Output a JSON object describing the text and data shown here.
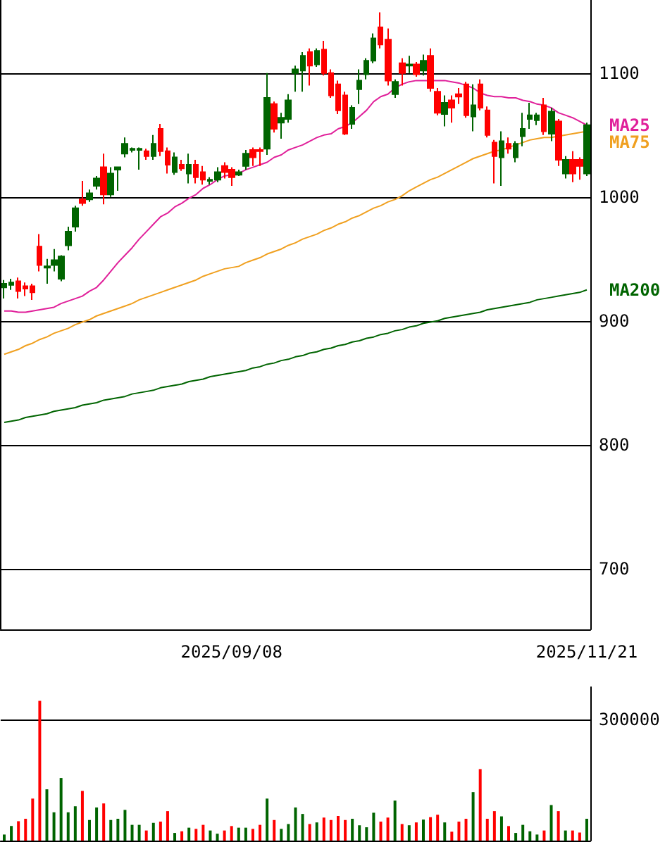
{
  "chart_data": [
    {
      "type": "candlestick",
      "categories": [
        null,
        null,
        null,
        null,
        null,
        null,
        null,
        null,
        null,
        null,
        null,
        null,
        null,
        null,
        null,
        null,
        null,
        null,
        null,
        null,
        null,
        null,
        null,
        null,
        null,
        null,
        null,
        null,
        null,
        null,
        null,
        null,
        "2025/09/08",
        null,
        null,
        null,
        null,
        null,
        null,
        null,
        null,
        null,
        null,
        null,
        null,
        null,
        null,
        null,
        null,
        null,
        null,
        null,
        null,
        null,
        null,
        null,
        null,
        null,
        null,
        null,
        null,
        null,
        null,
        null,
        null,
        null,
        null,
        null,
        null,
        null,
        null,
        null,
        null,
        null,
        null,
        null,
        null,
        null,
        null,
        null,
        null,
        null,
        "2025/11/21"
      ],
      "series": [
        {
          "type": "candlestick",
          "ohlc": [
            [
              927,
              933,
              918,
              930
            ],
            [
              929,
              934,
              925,
              931
            ],
            [
              932,
              935,
              918,
              924
            ],
            [
              928,
              931,
              920,
              926
            ],
            [
              928,
              930,
              917,
              923
            ],
            [
              960,
              970,
              940,
              945
            ],
            [
              943,
              950,
              930,
              944
            ],
            [
              945,
              958,
              940,
              949
            ],
            [
              934,
              953,
              932,
              952
            ],
            [
              961,
              976,
              957,
              972
            ],
            [
              976,
              993,
              972,
              991
            ],
            [
              998,
              1013,
              993,
              995
            ],
            [
              998,
              1006,
              996,
              1003
            ],
            [
              1009,
              1017,
              1006,
              1015
            ],
            [
              1024,
              1035,
              994,
              1002
            ],
            [
              1002,
              1024,
              1000,
              1019
            ],
            [
              1022,
              1024,
              1005,
              1024
            ],
            [
              1035,
              1048,
              1032,
              1043
            ],
            [
              1038,
              1040,
              1036,
              1039
            ],
            [
              1038,
              1040,
              1022,
              1039
            ],
            [
              1037,
              1039,
              1030,
              1033
            ],
            [
              1033,
              1050,
              1030,
              1043
            ],
            [
              1055,
              1059,
              1033,
              1037
            ],
            [
              1037,
              1040,
              1019,
              1026
            ],
            [
              1020,
              1036,
              1018,
              1032
            ],
            [
              1026,
              1030,
              1021,
              1023
            ],
            [
              1019,
              1035,
              1011,
              1026
            ],
            [
              1026,
              1030,
              1011,
              1016
            ],
            [
              1020,
              1025,
              1010,
              1014
            ],
            [
              1013,
              1016,
              1010,
              1014
            ],
            [
              1014,
              1024,
              1012,
              1020
            ],
            [
              1025,
              1028,
              1015,
              1020
            ],
            [
              1022,
              1024,
              1009,
              1016
            ],
            [
              1018,
              1022,
              1017,
              1020
            ],
            [
              1025,
              1038,
              1022,
              1035
            ],
            [
              1038,
              1040,
              1025,
              1032
            ],
            [
              1038,
              1040,
              1025,
              1037
            ],
            [
              1039,
              1100,
              1034,
              1080
            ],
            [
              1075,
              1077,
              1052,
              1055
            ],
            [
              1060,
              1068,
              1047,
              1064
            ],
            [
              1063,
              1083,
              1060,
              1078
            ],
            [
              1100,
              1106,
              1085,
              1103
            ],
            [
              1102,
              1117,
              1085,
              1114
            ],
            [
              1117,
              1120,
              1090,
              1106
            ],
            [
              1107,
              1120,
              1105,
              1118
            ],
            [
              1119,
              1126,
              1098,
              1100
            ],
            [
              1100,
              1103,
              1080,
              1082
            ],
            [
              1091,
              1094,
              1067,
              1070
            ],
            [
              1082,
              1085,
              1050,
              1051
            ],
            [
              1059,
              1074,
              1055,
              1072
            ],
            [
              1087,
              1103,
              1075,
              1094
            ],
            [
              1099,
              1112,
              1095,
              1110
            ],
            [
              1110,
              1132,
              1108,
              1128
            ],
            [
              1137,
              1149,
              1120,
              1123
            ],
            [
              1127,
              1136,
              1090,
              1094
            ],
            [
              1083,
              1095,
              1080,
              1093
            ],
            [
              1108,
              1112,
              1090,
              1100
            ],
            [
              1106,
              1114,
              1100,
              1107
            ],
            [
              1107,
              1109,
              1097,
              1099
            ],
            [
              1102,
              1115,
              1098,
              1110
            ],
            [
              1114,
              1120,
              1085,
              1088
            ],
            [
              1085,
              1088,
              1066,
              1068
            ],
            [
              1067,
              1082,
              1057,
              1076
            ],
            [
              1078,
              1082,
              1060,
              1072
            ],
            [
              1083,
              1088,
              1075,
              1081
            ],
            [
              1091,
              1093,
              1064,
              1066
            ],
            [
              1065,
              1091,
              1053,
              1074
            ],
            [
              1091,
              1095,
              1070,
              1072
            ],
            [
              1070,
              1073,
              1048,
              1050
            ],
            [
              1044,
              1046,
              1011,
              1033
            ],
            [
              1032,
              1053,
              1009,
              1045
            ],
            [
              1043,
              1048,
              1035,
              1039
            ],
            [
              1032,
              1045,
              1028,
              1043
            ],
            [
              1049,
              1068,
              1041,
              1055
            ],
            [
              1063,
              1076,
              1055,
              1066
            ],
            [
              1062,
              1068,
              1058,
              1066
            ],
            [
              1074,
              1080,
              1050,
              1053
            ],
            [
              1051,
              1072,
              1045,
              1069
            ],
            [
              1061,
              1063,
              1025,
              1030
            ],
            [
              1019,
              1033,
              1015,
              1030
            ],
            [
              1030,
              1037,
              1012,
              1019
            ],
            [
              1030,
              1032,
              1014,
              1025
            ],
            [
              1019,
              1060,
              1017,
              1058
            ]
          ],
          "colors": [
            "#006400",
            "#006400",
            "#ff0000",
            "#ff0000",
            "#ff0000",
            "#ff0000",
            "#006400",
            "#006400",
            "#006400",
            "#006400",
            "#006400",
            "#ff0000",
            "#006400",
            "#006400",
            "#ff0000",
            "#006400",
            "#006400",
            "#006400",
            "#006400",
            "#006400",
            "#ff0000",
            "#006400",
            "#ff0000",
            "#ff0000",
            "#006400",
            "#ff0000",
            "#006400",
            "#ff0000",
            "#ff0000",
            "#006400",
            "#006400",
            "#ff0000",
            "#ff0000",
            "#006400",
            "#006400",
            "#ff0000",
            "#ff0000",
            "#006400",
            "#ff0000",
            "#006400",
            "#006400",
            "#006400",
            "#006400",
            "#ff0000",
            "#006400",
            "#ff0000",
            "#ff0000",
            "#ff0000",
            "#ff0000",
            "#006400",
            "#006400",
            "#006400",
            "#006400",
            "#ff0000",
            "#ff0000",
            "#006400",
            "#ff0000",
            "#006400",
            "#ff0000",
            "#006400",
            "#ff0000",
            "#ff0000",
            "#006400",
            "#ff0000",
            "#ff0000",
            "#ff0000",
            "#006400",
            "#ff0000",
            "#ff0000",
            "#ff0000",
            "#006400",
            "#ff0000",
            "#006400",
            "#006400",
            "#006400",
            "#006400",
            "#ff0000",
            "#006400",
            "#ff0000",
            "#006400",
            "#ff0000",
            "#ff0000",
            "#006400"
          ]
        },
        {
          "type": "line",
          "name": "MA25",
          "color": "#e0209a",
          "values": [
            908,
            908,
            907,
            907,
            908,
            909,
            910,
            911,
            914,
            916,
            918,
            920,
            924,
            927,
            933,
            940,
            947,
            953,
            959,
            966,
            972,
            978,
            984,
            987,
            992,
            995,
            999,
            1002,
            1007,
            1010,
            1014,
            1017,
            1018,
            1019,
            1022,
            1024,
            1026,
            1028,
            1032,
            1034,
            1038,
            1040,
            1042,
            1045,
            1048,
            1050,
            1051,
            1055,
            1057,
            1060,
            1065,
            1070,
            1077,
            1081,
            1083,
            1088,
            1091,
            1093,
            1094,
            1094,
            1094,
            1094,
            1094,
            1093,
            1092,
            1090,
            1088,
            1084,
            1082,
            1081,
            1081,
            1080,
            1080,
            1078,
            1077,
            1075,
            1074,
            1072,
            1068,
            1066,
            1064,
            1061,
            1058
          ]
        },
        {
          "type": "line",
          "name": "MA75",
          "color": "#f0a020",
          "values": [
            873,
            875,
            877,
            880,
            882,
            885,
            887,
            890,
            892,
            894,
            897,
            899,
            901,
            904,
            906,
            908,
            910,
            912,
            914,
            917,
            919,
            921,
            923,
            925,
            927,
            929,
            931,
            933,
            936,
            938,
            940,
            942,
            943,
            944,
            947,
            949,
            951,
            954,
            956,
            958,
            961,
            963,
            966,
            968,
            970,
            973,
            975,
            978,
            980,
            983,
            985,
            988,
            991,
            993,
            996,
            998,
            1001,
            1005,
            1008,
            1011,
            1014,
            1016,
            1019,
            1022,
            1025,
            1028,
            1031,
            1033,
            1035,
            1037,
            1038,
            1040,
            1042,
            1044,
            1046,
            1047,
            1048,
            1048,
            1049,
            1050,
            1051,
            1052,
            1053
          ]
        },
        {
          "type": "line",
          "name": "MA200",
          "color": "#006400",
          "values": [
            818,
            819,
            820,
            822,
            823,
            824,
            825,
            827,
            828,
            829,
            830,
            832,
            833,
            834,
            836,
            837,
            838,
            839,
            841,
            842,
            843,
            844,
            846,
            847,
            848,
            849,
            851,
            852,
            853,
            855,
            856,
            857,
            858,
            859,
            860,
            862,
            863,
            865,
            866,
            868,
            869,
            871,
            872,
            874,
            875,
            877,
            878,
            880,
            881,
            883,
            884,
            886,
            887,
            889,
            890,
            892,
            893,
            895,
            896,
            898,
            899,
            900,
            902,
            903,
            904,
            905,
            906,
            907,
            909,
            910,
            911,
            912,
            913,
            914,
            915,
            917,
            918,
            919,
            920,
            921,
            922,
            923,
            925
          ]
        }
      ],
      "ylim": [
        651,
        1159
      ],
      "yticks": [
        700,
        800,
        900,
        1000,
        1100
      ],
      "grid": true,
      "marker": "none"
    },
    {
      "type": "bar",
      "categories": [
        null,
        null,
        null,
        null,
        null,
        null,
        null,
        null,
        null,
        null,
        null,
        null,
        null,
        null,
        null,
        null,
        null,
        null,
        null,
        null,
        null,
        null,
        null,
        null,
        null,
        null,
        null,
        null,
        null,
        null,
        null,
        null,
        null,
        null,
        null,
        null,
        null,
        null,
        null,
        null,
        null,
        null,
        null,
        null,
        null,
        null,
        null,
        null,
        null,
        null,
        null,
        null,
        null,
        null,
        null,
        null,
        null,
        null,
        null,
        null,
        null,
        null,
        null,
        null,
        null,
        null,
        null,
        null,
        null,
        null,
        null,
        null,
        null,
        null,
        null,
        null,
        null,
        null,
        null,
        null,
        null,
        null,
        null
      ],
      "values": [
        15000,
        36000,
        48000,
        54000,
        104000,
        346000,
        127000,
        70000,
        155000,
        70000,
        85000,
        123000,
        51000,
        82000,
        92000,
        51000,
        54000,
        76000,
        39000,
        39000,
        25000,
        44000,
        47000,
        73000,
        19000,
        23000,
        32000,
        29000,
        39000,
        25000,
        17000,
        25000,
        36000,
        32000,
        32000,
        29000,
        39000,
        104000,
        51000,
        29000,
        41000,
        82000,
        66000,
        41000,
        45000,
        57000,
        51000,
        61000,
        51000,
        54000,
        38000,
        33000,
        69000,
        47000,
        57000,
        99000,
        41000,
        38000,
        45000,
        52000,
        58000,
        64000,
        45000,
        22000,
        47000,
        54000,
        120000,
        177000,
        54000,
        73000,
        60000,
        36000,
        19000,
        39000,
        23000,
        15000,
        25000,
        88000,
        73000,
        25000,
        25000,
        20000,
        54000
      ],
      "ylim": [
        0,
        380000
      ],
      "yticks": [
        {
          "value": 0,
          "label": null
        },
        300000
      ],
      "colors": [
        "#006400",
        "#006400",
        "#ff0000",
        "#ff0000",
        "#ff0000",
        "#ff0000",
        "#006400",
        "#006400",
        "#006400",
        "#006400",
        "#006400",
        "#ff0000",
        "#006400",
        "#006400",
        "#ff0000",
        "#006400",
        "#006400",
        "#006400",
        "#006400",
        "#006400",
        "#ff0000",
        "#006400",
        "#ff0000",
        "#ff0000",
        "#006400",
        "#ff0000",
        "#006400",
        "#ff0000",
        "#ff0000",
        "#006400",
        "#006400",
        "#ff0000",
        "#ff0000",
        "#006400",
        "#006400",
        "#ff0000",
        "#ff0000",
        "#006400",
        "#ff0000",
        "#006400",
        "#006400",
        "#006400",
        "#006400",
        "#ff0000",
        "#006400",
        "#ff0000",
        "#ff0000",
        "#ff0000",
        "#ff0000",
        "#006400",
        "#006400",
        "#006400",
        "#006400",
        "#ff0000",
        "#ff0000",
        "#006400",
        "#ff0000",
        "#006400",
        "#ff0000",
        "#006400",
        "#ff0000",
        "#ff0000",
        "#006400",
        "#ff0000",
        "#ff0000",
        "#ff0000",
        "#006400",
        "#ff0000",
        "#ff0000",
        "#ff0000",
        "#006400",
        "#ff0000",
        "#006400",
        "#006400",
        "#006400",
        "#006400",
        "#ff0000",
        "#006400",
        "#ff0000",
        "#006400",
        "#ff0000",
        "#ff0000",
        "#006400"
      ],
      "grid": "y"
    }
  ]
}
